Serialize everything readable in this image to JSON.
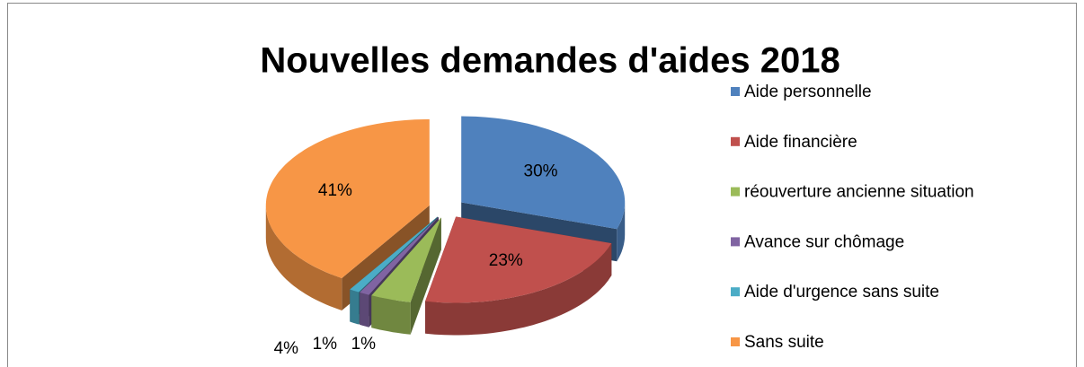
{
  "chart_data": {
    "type": "pie",
    "title": "Nouvelles demandes d'aides 2018",
    "categories": [
      "Aide personnelle",
      "Aide financière",
      "réouverture ancienne situation",
      "Avance sur chômage",
      "Aide d'urgence sans suite",
      "Sans suite"
    ],
    "values": [
      30,
      23,
      4,
      1,
      1,
      41
    ],
    "value_labels": [
      "30%",
      "23%",
      "4%",
      "1%",
      "1%",
      "41%"
    ],
    "colors": [
      "#4f81bd",
      "#c0504d",
      "#9bbb59",
      "#8064a2",
      "#4bacc6",
      "#f79646"
    ],
    "legend": "right"
  }
}
